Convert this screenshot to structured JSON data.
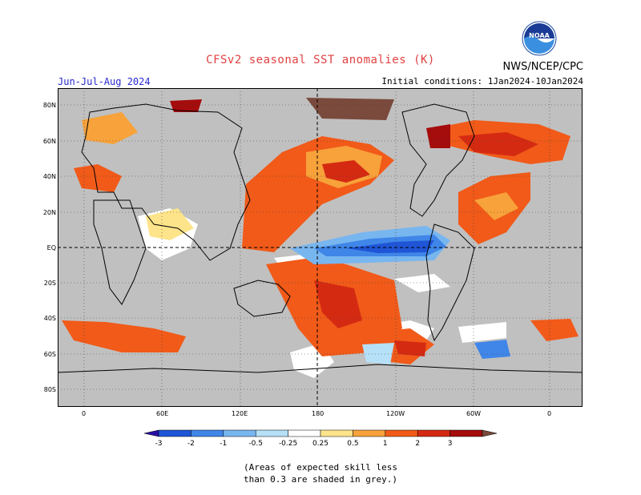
{
  "header": {
    "title": "CFSv2 seasonal SST anomalies (K)",
    "agency": "NWS/NCEP/CPC",
    "season": "Jun-Jul-Aug 2024",
    "initial_conditions": "Initial conditions: 1Jan2024-10Jan2024",
    "logo_text": "NOAA"
  },
  "map": {
    "lat_labels": [
      "80N",
      "60N",
      "40N",
      "20N",
      "EQ",
      "20S",
      "40S",
      "60S",
      "80S"
    ],
    "lon_labels": [
      "0",
      "60E",
      "120E",
      "180",
      "120W",
      "60W",
      "0"
    ],
    "land_color": "#c0c0c0",
    "ocean_white": "#ffffff"
  },
  "colorbar": {
    "tick_labels": [
      "-3",
      "-2",
      "-1",
      "-0.5",
      "-0.25",
      "0.25",
      "0.5",
      "1",
      "2",
      "3"
    ],
    "colors": [
      "#2a0ea3",
      "#1f55d6",
      "#3f86e8",
      "#78b6f0",
      "#b5e0f8",
      "#ffffff",
      "#fde48a",
      "#f7a23a",
      "#f15a19",
      "#d52a12",
      "#a50c0c",
      "#7a4a3c"
    ]
  },
  "note": {
    "line1": "(Areas of expected skill less",
    "line2": "than 0.3 are shaded in grey.)"
  }
}
